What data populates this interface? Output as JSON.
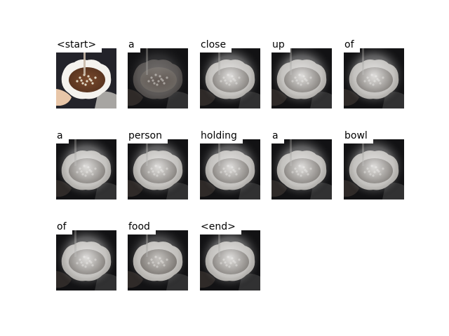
{
  "tokens": [
    {
      "word": "<start>",
      "attention": "original"
    },
    {
      "word": "a",
      "attention": "dim"
    },
    {
      "word": "close",
      "attention": "bright"
    },
    {
      "word": "up",
      "attention": "bright"
    },
    {
      "word": "of",
      "attention": "bright"
    },
    {
      "word": "a",
      "attention": "bright"
    },
    {
      "word": "person",
      "attention": "bright"
    },
    {
      "word": "holding",
      "attention": "bright"
    },
    {
      "word": "a",
      "attention": "bright"
    },
    {
      "word": "bowl",
      "attention": "bright"
    },
    {
      "word": "of",
      "attention": "bright"
    },
    {
      "word": "food",
      "attention": "medium"
    },
    {
      "word": "<end>",
      "attention": "bright"
    }
  ]
}
